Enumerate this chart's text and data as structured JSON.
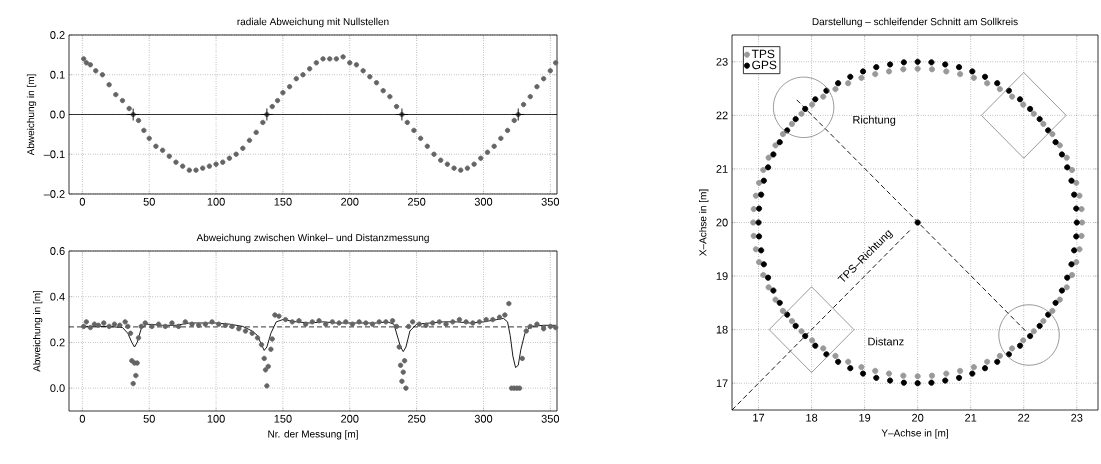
{
  "chart_data": [
    {
      "type": "scatter",
      "title": "radiale Abweichung mit Nullstellen",
      "ylabel": "Abweichung in [m]",
      "xlim": [
        -10,
        355
      ],
      "ylim": [
        -0.2,
        0.2
      ],
      "xticks": [
        0,
        50,
        100,
        150,
        200,
        250,
        300,
        350
      ],
      "yticks": [
        {
          "value": -0.2,
          "label": "–0.2"
        },
        {
          "value": -0.1,
          "label": "–0.1"
        },
        {
          "value": 0,
          "label": "0.0"
        },
        0.1,
        0.2
      ],
      "grid": true,
      "marker": "circle",
      "ref_lines": [
        {
          "axis": "y",
          "value": 0,
          "color": "#000000",
          "line_style": "solid"
        }
      ],
      "series": [
        {
          "color": "#646464",
          "x": [
            1,
            3,
            6,
            10,
            15,
            20,
            25,
            30,
            35,
            38,
            42,
            46,
            50,
            55,
            60,
            65,
            70,
            75,
            80,
            85,
            90,
            95,
            100,
            105,
            110,
            115,
            120,
            125,
            130,
            135,
            138,
            142,
            146,
            150,
            155,
            160,
            165,
            170,
            175,
            180,
            185,
            190,
            195,
            200,
            205,
            210,
            215,
            220,
            225,
            230,
            235,
            239,
            243,
            248,
            253,
            258,
            263,
            268,
            273,
            278,
            283,
            288,
            293,
            298,
            303,
            308,
            313,
            318,
            323,
            326,
            330,
            335,
            340,
            345,
            350,
            354
          ],
          "values": [
            0.14,
            0.13,
            0.125,
            0.11,
            0.1,
            0.075,
            0.05,
            0.035,
            0.015,
            0.0,
            -0.015,
            -0.04,
            -0.06,
            -0.08,
            -0.09,
            -0.105,
            -0.12,
            -0.13,
            -0.14,
            -0.14,
            -0.135,
            -0.13,
            -0.125,
            -0.12,
            -0.11,
            -0.1,
            -0.085,
            -0.065,
            -0.045,
            -0.02,
            0.0,
            0.02,
            0.035,
            0.055,
            0.07,
            0.09,
            0.1,
            0.115,
            0.13,
            0.14,
            0.14,
            0.14,
            0.145,
            0.13,
            0.125,
            0.11,
            0.095,
            0.08,
            0.06,
            0.045,
            0.02,
            0.0,
            -0.02,
            -0.04,
            -0.06,
            -0.08,
            -0.1,
            -0.115,
            -0.125,
            -0.135,
            -0.14,
            -0.135,
            -0.125,
            -0.11,
            -0.095,
            -0.08,
            -0.06,
            -0.04,
            -0.015,
            0.0,
            0.025,
            0.045,
            0.07,
            0.09,
            0.11,
            0.13
          ]
        },
        {
          "color": "#000000",
          "marker": "cross",
          "x": [
            38,
            138,
            239,
            326
          ],
          "values": [
            0,
            0,
            0,
            0
          ]
        }
      ]
    },
    {
      "type": "scatter",
      "title": "Abweichung zwischen Winkel– und Distanzmessung",
      "xlabel": "Nr. der Messung [m]",
      "ylabel": "Abweichung in [m]",
      "xlim": [
        -10,
        355
      ],
      "ylim": [
        -0.1,
        0.6
      ],
      "xticks": [
        0,
        50,
        100,
        150,
        200,
        250,
        300,
        350
      ],
      "yticks": [
        {
          "value": 0,
          "label": "0.0"
        },
        0.2,
        0.4,
        0.6
      ],
      "grid": true,
      "marker": "circle",
      "ref_lines": [
        {
          "axis": "y",
          "value": 0.268,
          "color": "#000000",
          "line_style": "dashed"
        }
      ],
      "series": [
        {
          "color": "#646464",
          "x": [
            1,
            3,
            6,
            9,
            12,
            16,
            20,
            24,
            28,
            32,
            34,
            36,
            37,
            38,
            39,
            40,
            41,
            42,
            44,
            47,
            52,
            57,
            62,
            67,
            72,
            77,
            82,
            87,
            92,
            97,
            102,
            107,
            112,
            117,
            122,
            127,
            131,
            134,
            136,
            137,
            138,
            139,
            141,
            142,
            144,
            147,
            152,
            157,
            162,
            167,
            172,
            177,
            182,
            187,
            192,
            197,
            202,
            207,
            212,
            217,
            222,
            227,
            232,
            235,
            237,
            238,
            239,
            240,
            241,
            242,
            244,
            247,
            252,
            257,
            262,
            267,
            272,
            277,
            282,
            287,
            292,
            297,
            302,
            307,
            312,
            316,
            319,
            321,
            323,
            325,
            327,
            329,
            332,
            335,
            340,
            345,
            350,
            354
          ],
          "values": [
            0.27,
            0.29,
            0.265,
            0.28,
            0.275,
            0.285,
            0.27,
            0.28,
            0.275,
            0.29,
            0.27,
            0.24,
            0.12,
            0.02,
            0.11,
            0.055,
            0.11,
            0.22,
            0.27,
            0.285,
            0.27,
            0.28,
            0.27,
            0.285,
            0.27,
            0.29,
            0.28,
            0.275,
            0.28,
            0.29,
            0.28,
            0.275,
            0.27,
            0.26,
            0.25,
            0.24,
            0.22,
            0.19,
            0.13,
            0.08,
            0.01,
            0.095,
            0.17,
            0.215,
            0.32,
            0.315,
            0.3,
            0.29,
            0.295,
            0.28,
            0.29,
            0.295,
            0.28,
            0.29,
            0.285,
            0.29,
            0.28,
            0.29,
            0.285,
            0.28,
            0.29,
            0.29,
            0.295,
            0.27,
            0.18,
            0.1,
            0.03,
            0.07,
            0.12,
            0.0,
            0.27,
            0.29,
            0.28,
            0.275,
            0.285,
            0.29,
            0.28,
            0.29,
            0.3,
            0.29,
            0.285,
            0.29,
            0.3,
            0.3,
            0.31,
            0.32,
            0.37,
            0.0,
            0.0,
            0.0,
            0.0,
            0.13,
            0.25,
            0.27,
            0.28,
            0.26,
            0.27,
            0.265
          ]
        },
        {
          "type": "line",
          "color": "#000000",
          "marker": "none",
          "x": [
            0,
            10,
            20,
            30,
            34,
            37,
            39,
            41,
            44,
            48,
            60,
            70,
            80,
            90,
            100,
            110,
            120,
            127,
            131,
            134,
            136,
            138,
            141,
            145,
            150,
            160,
            170,
            180,
            190,
            200,
            210,
            220,
            228,
            233,
            236,
            238,
            240,
            242,
            245,
            250,
            260,
            270,
            280,
            290,
            300,
            310,
            315,
            318,
            320,
            322,
            324,
            326,
            328,
            331,
            335,
            345,
            354
          ],
          "values": [
            0.27,
            0.27,
            0.27,
            0.265,
            0.24,
            0.2,
            0.18,
            0.2,
            0.26,
            0.28,
            0.275,
            0.275,
            0.285,
            0.285,
            0.285,
            0.28,
            0.27,
            0.25,
            0.23,
            0.19,
            0.165,
            0.18,
            0.24,
            0.29,
            0.3,
            0.29,
            0.285,
            0.29,
            0.285,
            0.285,
            0.285,
            0.285,
            0.29,
            0.28,
            0.22,
            0.18,
            0.16,
            0.18,
            0.25,
            0.28,
            0.285,
            0.29,
            0.29,
            0.285,
            0.29,
            0.3,
            0.305,
            0.29,
            0.23,
            0.14,
            0.09,
            0.1,
            0.17,
            0.24,
            0.27,
            0.275,
            0.275
          ]
        }
      ]
    },
    {
      "type": "scatter",
      "title": "Darstellung – schleifender Schnitt am Sollkreis",
      "xlabel": "Y–Achse in [m]",
      "ylabel": "X–Achse in [m]",
      "xlim": [
        16.5,
        23.4
      ],
      "ylim": [
        16.5,
        23.5
      ],
      "xticks": [
        17,
        18,
        19,
        20,
        21,
        22,
        23
      ],
      "yticks": [
        17,
        18,
        19,
        20,
        21,
        22,
        23
      ],
      "grid": true,
      "marker": "circle",
      "legend": "top left",
      "annotations": [
        "Richtung",
        "Distanz",
        "TPS–Richtung"
      ],
      "series": [
        {
          "name": "TPS",
          "color": "#999999",
          "x": [
            23.1,
            23.09,
            23.05,
            22.99,
            22.91,
            22.81,
            22.68,
            22.54,
            22.37,
            22.19,
            21.99,
            21.78,
            21.55,
            21.31,
            21.06,
            20.8,
            20.54,
            20.27,
            20.0,
            19.73,
            19.46,
            19.2,
            18.94,
            18.69,
            18.45,
            18.22,
            18.01,
            17.81,
            17.63,
            17.46,
            17.32,
            17.19,
            17.09,
            17.01,
            16.95,
            16.91,
            16.9,
            16.91,
            16.95,
            17.01,
            17.09,
            17.19,
            17.32,
            17.46,
            17.63,
            17.81,
            18.01,
            18.22,
            18.45,
            18.69,
            18.94,
            19.2,
            19.46,
            19.73,
            20.0,
            20.27,
            20.54,
            20.8,
            21.06,
            21.31,
            21.55,
            21.78,
            21.99,
            22.19,
            22.37,
            22.54,
            22.68,
            22.81,
            22.91,
            22.99,
            23.05,
            23.09
          ],
          "values": [
            20.0,
            20.25,
            20.5,
            20.74,
            20.98,
            21.21,
            21.44,
            21.65,
            21.84,
            22.03,
            22.2,
            22.35,
            22.49,
            22.6,
            22.7,
            22.77,
            22.82,
            22.86,
            22.87,
            22.86,
            22.82,
            22.77,
            22.7,
            22.6,
            22.49,
            22.35,
            22.2,
            22.03,
            21.84,
            21.65,
            21.44,
            21.21,
            20.98,
            20.74,
            20.5,
            20.25,
            20.0,
            19.75,
            19.5,
            19.26,
            19.02,
            18.79,
            18.56,
            18.35,
            18.16,
            17.97,
            17.8,
            17.65,
            17.51,
            17.4,
            17.3,
            17.23,
            17.18,
            17.14,
            17.13,
            17.14,
            17.18,
            17.23,
            17.3,
            17.4,
            17.51,
            17.65,
            17.8,
            17.97,
            18.16,
            18.35,
            18.56,
            18.79,
            19.02,
            19.26,
            19.5,
            19.75
          ]
        },
        {
          "name": "GPS",
          "color": "#000000",
          "x": [
            23.0,
            22.99,
            22.95,
            22.9,
            22.82,
            22.72,
            22.6,
            22.46,
            22.3,
            22.12,
            21.93,
            21.72,
            21.5,
            21.27,
            21.03,
            20.78,
            20.52,
            20.26,
            20.0,
            19.74,
            19.48,
            19.22,
            18.97,
            18.73,
            18.5,
            18.28,
            18.07,
            17.88,
            17.7,
            17.54,
            17.4,
            17.28,
            17.18,
            17.1,
            17.05,
            17.01,
            17.0,
            17.01,
            17.05,
            17.1,
            17.18,
            17.28,
            17.4,
            17.54,
            17.7,
            17.88,
            18.07,
            18.28,
            18.5,
            18.73,
            18.97,
            19.22,
            19.48,
            19.74,
            20.0,
            20.26,
            20.52,
            20.78,
            21.03,
            21.27,
            21.5,
            21.72,
            21.93,
            22.12,
            22.3,
            22.46,
            22.6,
            22.72,
            22.82,
            22.9,
            22.95,
            22.99
          ],
          "values": [
            20.0,
            20.26,
            20.52,
            20.78,
            21.03,
            21.27,
            21.5,
            21.72,
            21.93,
            22.12,
            22.3,
            22.46,
            22.6,
            22.72,
            22.82,
            22.9,
            22.95,
            22.99,
            23.0,
            22.99,
            22.95,
            22.9,
            22.82,
            22.72,
            22.6,
            22.46,
            22.3,
            22.12,
            21.93,
            21.72,
            21.5,
            21.27,
            21.03,
            20.78,
            20.52,
            20.26,
            20.0,
            19.74,
            19.48,
            19.22,
            18.97,
            18.73,
            18.5,
            18.28,
            18.07,
            17.88,
            17.7,
            17.54,
            17.4,
            17.28,
            17.18,
            17.1,
            17.05,
            17.01,
            17.0,
            17.01,
            17.05,
            17.1,
            17.18,
            17.28,
            17.4,
            17.54,
            17.7,
            17.88,
            18.07,
            18.28,
            18.5,
            18.73,
            18.97,
            19.22,
            19.48,
            19.74
          ]
        },
        {
          "type": "line",
          "color": "#000000",
          "marker": "none",
          "line_style": "dashed",
          "x": [
            16.5,
            19.85
          ],
          "values": [
            16.5,
            19.85
          ]
        },
        {
          "type": "line",
          "color": "#000000",
          "marker": "none",
          "line_style": "dashed",
          "x": [
            17.72,
            22.07
          ],
          "values": [
            22.29,
            17.94
          ]
        },
        {
          "color": "#000000",
          "marker": "circle",
          "x": [
            20
          ],
          "values": [
            20
          ]
        }
      ]
    }
  ]
}
